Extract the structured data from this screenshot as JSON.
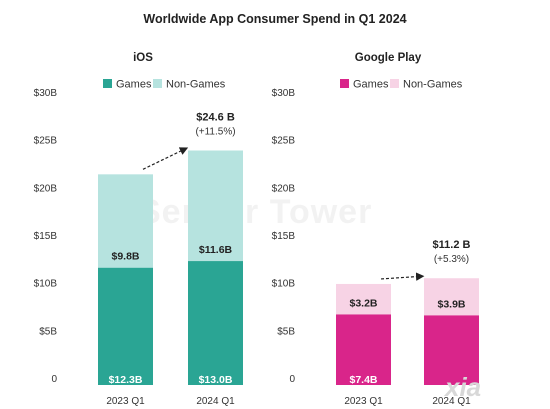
{
  "title": "Worldwide App Consumer Spend in Q1 2024",
  "watermark": "Sensor Tower",
  "logo_text": "xia",
  "colors": {
    "ios_games": "#2aa594",
    "ios_nongames": "#b6e3df",
    "gp_games": "#d9258a",
    "gp_nongames": "#f7d3e5"
  },
  "chart_data": [
    {
      "type": "bar",
      "stacked": true,
      "title": "iOS",
      "categories": [
        "2023 Q1",
        "2024 Q1"
      ],
      "series": [
        {
          "name": "Games",
          "values": [
            12.3,
            13.0
          ],
          "labels": [
            "$12.3B",
            "$13.0B"
          ]
        },
        {
          "name": "Non-Games",
          "values": [
            9.8,
            11.6
          ],
          "labels": [
            "$9.8B",
            "$11.6B"
          ]
        }
      ],
      "totals": [
        22.1,
        24.6
      ],
      "annotation": {
        "total": "$24.6 B",
        "growth": "(+11.5%)"
      },
      "yticks": [
        "$30B",
        "$25B",
        "$20B",
        "$15B",
        "$10B",
        "$5B",
        "0"
      ],
      "ylim": [
        0,
        30
      ],
      "legend": "top"
    },
    {
      "type": "bar",
      "stacked": true,
      "title": "Google Play",
      "categories": [
        "2023 Q1",
        "2024 Q1"
      ],
      "series": [
        {
          "name": "Games",
          "values": [
            7.4,
            7.3
          ],
          "labels": [
            "$7.4B",
            ""
          ]
        },
        {
          "name": "Non-Games",
          "values": [
            3.2,
            3.9
          ],
          "labels": [
            "$3.2B",
            "$3.9B"
          ]
        }
      ],
      "totals": [
        10.6,
        11.2
      ],
      "annotation": {
        "total": "$11.2 B",
        "growth": "(+5.3%)"
      },
      "yticks": [
        "$30B",
        "$25B",
        "$20B",
        "$15B",
        "$10B",
        "$5B",
        "0"
      ],
      "ylim": [
        0,
        30
      ],
      "legend": "top"
    }
  ]
}
